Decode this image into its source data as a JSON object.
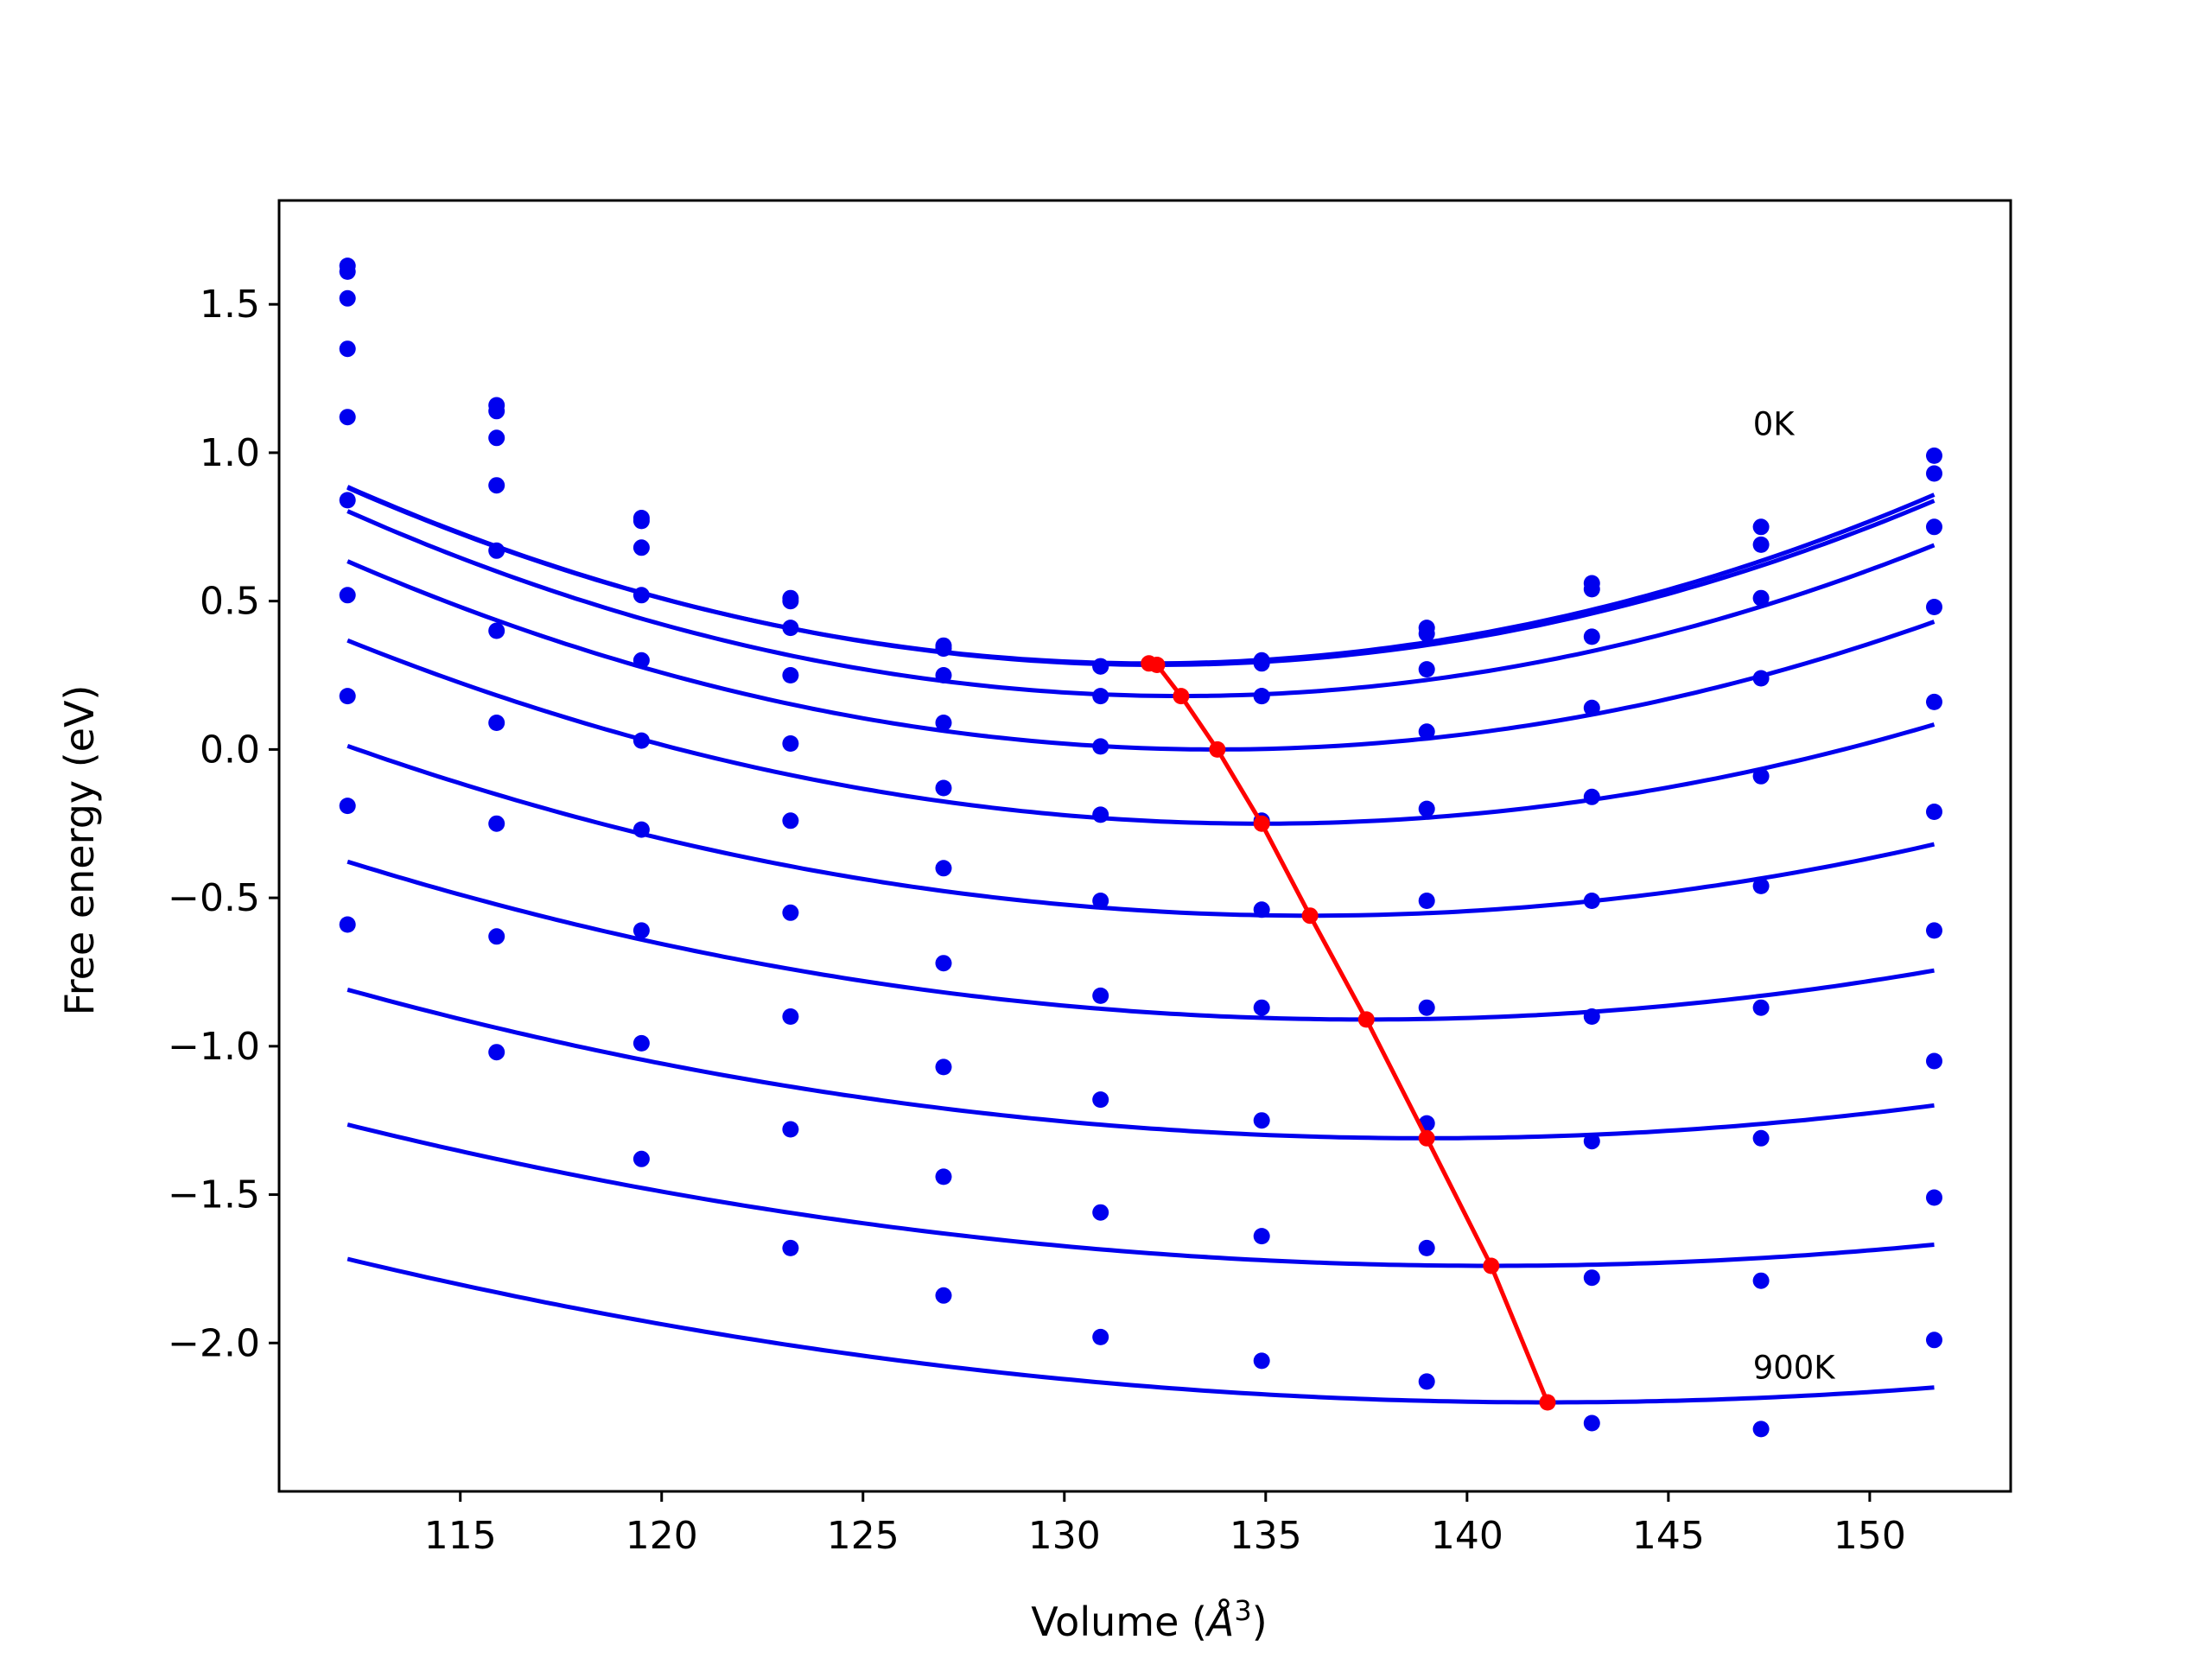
{
  "chart_data": {
    "type": "scatter",
    "xlabel_text": "Volume (",
    "xlabel_unit": "Å",
    "xlabel_power": "3",
    "xlabel_close": ")",
    "ylabel": "Free energy (eV)",
    "xlim": [
      110.5,
      153.5
    ],
    "ylim": [
      -2.5,
      1.85
    ],
    "xticks": [
      115,
      120,
      125,
      130,
      135,
      140,
      145,
      150
    ],
    "xtick_labels": [
      "115",
      "120",
      "125",
      "130",
      "135",
      "140",
      "145",
      "150"
    ],
    "yticks": [
      1.5,
      1.0,
      0.5,
      0.0,
      -0.5,
      -1.0,
      -1.5,
      -2.0
    ],
    "ytick_labels": [
      "1.5",
      "1.0",
      "0.5",
      "0.0",
      "−0.5",
      "−1.0",
      "−1.5",
      "−2.0"
    ],
    "grid": false,
    "annotations": [
      {
        "text": "0K",
        "x": 147.1,
        "y": 1.06
      },
      {
        "text": "900K",
        "x": 147.1,
        "y": -2.12
      }
    ],
    "x": [
      112.2,
      115.9,
      119.5,
      123.2,
      127.0,
      130.9,
      134.9,
      139.0,
      143.1,
      147.3,
      151.6
    ],
    "colors": {
      "points": "#0000ee",
      "fit": "#0000ee",
      "minima": "#ff0000"
    },
    "series": [
      {
        "points": [
          1.63,
          1.16,
          0.78,
          0.51,
          0.35,
          0.28,
          0.3,
          0.41,
          0.56,
          0.75,
          0.99
        ],
        "fit": {
          "v0": 132.1,
          "e0": 0.29,
          "a": 0.001495
        }
      },
      {
        "points": [
          1.61,
          1.14,
          0.77,
          0.5,
          0.34,
          0.28,
          0.29,
          0.39,
          0.54,
          0.69,
          0.93
        ],
        "fit": {
          "v0": 132.3,
          "e0": 0.285,
          "a": 0.001485
        }
      },
      {
        "points": [
          1.52,
          1.05,
          0.68,
          0.41,
          0.25,
          0.18,
          0.18,
          0.27,
          0.38,
          0.51,
          0.75
        ],
        "fit": {
          "v0": 132.9,
          "e0": 0.18,
          "a": 0.001454
        }
      },
      {
        "points": [
          1.35,
          0.89,
          0.52,
          0.25,
          0.09,
          0.01,
          0.18,
          0.06,
          0.14,
          0.24,
          0.48
        ],
        "fit": {
          "v0": 133.8,
          "e0": 0.0,
          "a": 0.001359
        }
      },
      {
        "points": [
          1.12,
          0.67,
          0.3,
          0.02,
          -0.13,
          -0.22,
          -0.24,
          -0.2,
          -0.16,
          -0.09,
          0.16
        ],
        "fit": {
          "v0": 134.9,
          "e0": -0.25,
          "a": 0.001198
        }
      },
      {
        "points": [
          0.84,
          0.4,
          0.03,
          -0.24,
          -0.4,
          -0.51,
          -0.54,
          -0.51,
          -0.51,
          -0.46,
          -0.21
        ],
        "fit": {
          "v0": 136.1,
          "e0": -0.56,
          "a": 0.001001
        }
      },
      {
        "points": [
          0.52,
          0.09,
          -0.27,
          -0.55,
          -0.72,
          -0.83,
          -0.87,
          -0.87,
          -0.9,
          -0.87,
          -0.61
        ],
        "fit": {
          "v0": 137.5,
          "e0": -0.91,
          "a": 0.000831
        }
      },
      {
        "points": [
          0.18,
          -0.25,
          -0.61,
          -0.9,
          -1.07,
          -1.18,
          -1.25,
          -1.26,
          -1.32,
          -1.31,
          -1.05
        ],
        "fit": {
          "v0": 139.0,
          "e0": -1.31,
          "a": 0.000697
        }
      },
      {
        "points": [
          -0.19,
          -0.63,
          -0.99,
          -1.28,
          -1.44,
          -1.56,
          -1.64,
          -1.68,
          -1.78,
          -1.79,
          -1.51
        ],
        "fit": {
          "v0": 140.6,
          "e0": -1.74,
          "a": 0.00059
        }
      },
      {
        "points": [
          -0.59,
          -1.02,
          -1.38,
          -1.68,
          -1.84,
          -1.98,
          -2.06,
          -2.13,
          -2.27,
          -2.29,
          -1.99
        ],
        "fit": {
          "v0": 142.0,
          "e0": -2.2,
          "a": 0.000544
        }
      }
    ],
    "minima_line": {
      "x": [
        132.1,
        132.3,
        132.9,
        133.8,
        134.9,
        136.1,
        137.5,
        139.0,
        140.6,
        142.0
      ],
      "y": [
        0.29,
        0.285,
        0.18,
        0.0,
        -0.25,
        -0.56,
        -0.91,
        -1.31,
        -1.74,
        -2.2
      ]
    }
  }
}
